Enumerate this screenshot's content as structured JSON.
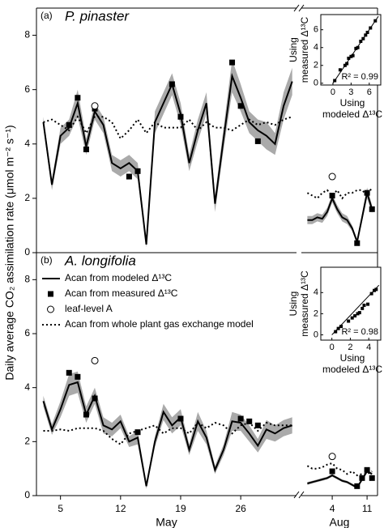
{
  "chart_data": [
    {
      "type": "line",
      "label": "(a)",
      "title": "P. pinaster",
      "ylabel": "Daily average CO₂ assimilation rate (μmol m⁻² s⁻¹)",
      "ylim": [
        0,
        9
      ],
      "yticks": [
        0,
        2,
        4,
        6,
        8
      ],
      "segments": [
        {
          "xlim": [
            2.2,
            32.5
          ],
          "x": [
            3,
            4,
            5,
            6,
            7,
            8,
            9,
            10,
            11,
            12,
            13,
            14,
            15,
            16,
            17,
            18,
            19,
            20,
            21,
            22,
            23,
            24,
            25,
            26,
            27,
            28,
            29,
            30,
            31,
            32
          ],
          "series": [
            {
              "style": "solid",
              "color": "#000000",
              "band_color": "#aaaaaa",
              "values": [
                4.8,
                2.5,
                4.3,
                4.6,
                5.5,
                3.9,
                5.2,
                4.7,
                3.3,
                3.1,
                3.3,
                3.0,
                0.3,
                4.8,
                5.5,
                6.2,
                5.1,
                3.3,
                4.5,
                5.5,
                1.8,
                4.2,
                6.5,
                5.7,
                4.8,
                4.5,
                4.3,
                4.0,
                5.4,
                6.3
              ],
              "lower": [
                4.6,
                2.3,
                4.0,
                4.3,
                5.0,
                3.6,
                4.9,
                4.4,
                3.0,
                2.8,
                3.0,
                2.7,
                0.2,
                4.4,
                5.1,
                5.8,
                4.7,
                3.0,
                4.1,
                5.1,
                1.5,
                3.8,
                5.9,
                5.2,
                4.4,
                4.1,
                3.8,
                3.6,
                4.9,
                5.8
              ],
              "upper": [
                5.0,
                2.7,
                4.6,
                4.9,
                6.0,
                4.2,
                5.5,
                5.0,
                3.6,
                3.4,
                3.6,
                3.3,
                0.4,
                5.2,
                5.9,
                6.6,
                5.5,
                3.6,
                4.9,
                5.9,
                2.1,
                4.6,
                7.1,
                6.2,
                5.2,
                4.9,
                4.8,
                4.4,
                5.9,
                6.8
              ]
            },
            {
              "style": "dotted",
              "color": "#000000",
              "values": [
                4.8,
                4.9,
                4.7,
                4.5,
                5.0,
                4.4,
                5.0,
                5.0,
                4.8,
                4.2,
                4.5,
                4.9,
                4.4,
                4.8,
                4.6,
                4.6,
                4.6,
                4.9,
                4.5,
                4.8,
                4.6,
                4.6,
                4.5,
                4.7,
                4.9,
                4.7,
                4.8,
                4.7,
                4.9,
                5.0
              ]
            },
            {
              "style": "square",
              "color": "#000000",
              "values": [
                null,
                null,
                null,
                4.7,
                5.7,
                3.8,
                5.3,
                null,
                null,
                null,
                2.8,
                3.0,
                null,
                null,
                null,
                6.2,
                5.0,
                null,
                null,
                null,
                null,
                null,
                7.0,
                5.4,
                null,
                4.1,
                null,
                null,
                null,
                null
              ]
            },
            {
              "style": "circle",
              "color": "#000000",
              "values": [
                null,
                null,
                null,
                null,
                null,
                null,
                5.4,
                null,
                null,
                null,
                null,
                null,
                null,
                null,
                null,
                null,
                null,
                null,
                null,
                null,
                null,
                null,
                null,
                null,
                null,
                null,
                null,
                null,
                null,
                null
              ]
            }
          ]
        },
        {
          "xlim": [
            -2.2,
            13.1
          ],
          "x": [
            -1,
            0,
            1,
            2,
            3,
            4,
            5,
            6,
            7,
            8,
            9,
            10,
            11,
            12
          ],
          "series": [
            {
              "style": "solid",
              "color": "#000000",
              "band_color": "#aaaaaa",
              "values": [
                1.2,
                1.2,
                1.3,
                1.25,
                1.5,
                2.0,
                1.6,
                1.3,
                1.2,
                0.9,
                0.4,
                1.3,
                2.2,
                1.6
              ],
              "lower": [
                1.05,
                1.05,
                1.15,
                1.1,
                1.35,
                1.85,
                1.45,
                1.15,
                1.05,
                0.8,
                0.3,
                1.15,
                2.0,
                1.45
              ],
              "upper": [
                1.35,
                1.35,
                1.45,
                1.4,
                1.65,
                2.15,
                1.75,
                1.45,
                1.35,
                1.0,
                0.5,
                1.45,
                2.4,
                1.75
              ]
            },
            {
              "style": "dotted",
              "color": "#000000",
              "values": [
                2.2,
                2.1,
                2.0,
                2.2,
                2.3,
                2.1,
                2.3,
                2.0,
                2.2,
                2.2,
                2.3,
                2.3,
                2.1,
                2.4
              ]
            },
            {
              "style": "square",
              "color": "#000000",
              "values": [
                null,
                null,
                null,
                null,
                null,
                2.1,
                null,
                null,
                null,
                null,
                0.35,
                null,
                2.2,
                1.6
              ]
            },
            {
              "style": "circle",
              "color": "#000000",
              "values": [
                null,
                null,
                null,
                null,
                null,
                2.8,
                null,
                null,
                null,
                null,
                null,
                null,
                null,
                null
              ]
            }
          ]
        }
      ]
    },
    {
      "type": "scatter",
      "xlim": [
        -2,
        7.9
      ],
      "ylim": [
        -0.2,
        7.7
      ],
      "xticks": [
        0,
        3,
        6
      ],
      "yticks": [
        0,
        2,
        4,
        6
      ],
      "xlabel": [
        "Using",
        "modeled Δ¹³C"
      ],
      "ylabel": [
        "Using",
        "measured Δ¹³C"
      ],
      "annotation": "R² = 0.99",
      "color": "#000000",
      "x": [
        0.3,
        1.2,
        2.0,
        2.3,
        2.6,
        3.0,
        3.3,
        3.8,
        4.1,
        4.6,
        5.0,
        5.4,
        5.7,
        6.2,
        7.0
      ],
      "values": [
        0.3,
        1.5,
        2.0,
        2.2,
        2.8,
        3.0,
        3.1,
        3.9,
        4.0,
        4.7,
        5.0,
        5.4,
        5.7,
        6.2,
        7.0
      ],
      "fit": {
        "x": [
          0,
          7.5
        ],
        "values": [
          0,
          7.5
        ]
      }
    },
    {
      "type": "line",
      "label": "(b)",
      "title": "A. longifolia",
      "ylim": [
        0,
        9
      ],
      "yticks": [
        0,
        2,
        4,
        6,
        8
      ],
      "legend": [
        {
          "name": "Acan from modeled Δ¹³C",
          "style": "solid"
        },
        {
          "name": "Acan from measured Δ¹³C",
          "style": "square"
        },
        {
          "name": "leaf-level A",
          "style": "circle"
        },
        {
          "name": "Acan from whole plant gas exchange model",
          "style": "dotted"
        }
      ],
      "segments": [
        {
          "label": "May",
          "xlim": [
            2.2,
            32.5
          ],
          "xticks": [
            5,
            12,
            19,
            26
          ],
          "x": [
            3,
            4,
            5,
            6,
            7,
            8,
            9,
            10,
            11,
            12,
            13,
            14,
            15,
            16,
            17,
            18,
            19,
            20,
            21,
            22,
            23,
            24,
            25,
            26,
            27,
            28,
            29,
            30,
            31,
            32
          ],
          "series": [
            {
              "style": "solid",
              "color": "#000000",
              "band_color": "#aaaaaa",
              "values": [
                3.5,
                2.45,
                3.2,
                4.1,
                4.2,
                3.0,
                3.7,
                2.6,
                2.45,
                2.75,
                2.0,
                2.15,
                0.35,
                2.0,
                3.1,
                2.6,
                2.9,
                1.7,
                2.75,
                2.15,
                0.95,
                1.7,
                2.75,
                2.7,
                2.3,
                1.85,
                2.45,
                2.3,
                2.5,
                2.6
              ],
              "lower": [
                3.3,
                2.25,
                2.9,
                3.7,
                3.8,
                2.7,
                3.4,
                2.3,
                2.2,
                2.5,
                1.8,
                1.9,
                0.25,
                1.8,
                2.8,
                2.3,
                2.6,
                1.5,
                2.4,
                1.9,
                0.8,
                1.5,
                2.4,
                2.4,
                2.0,
                1.6,
                2.1,
                2.0,
                2.2,
                2.3
              ],
              "upper": [
                3.7,
                2.65,
                3.5,
                4.5,
                4.6,
                3.3,
                4.0,
                2.9,
                2.7,
                3.0,
                2.2,
                2.4,
                0.45,
                2.2,
                3.4,
                2.9,
                3.2,
                1.9,
                3.1,
                2.4,
                1.1,
                1.9,
                3.1,
                3.0,
                2.6,
                2.1,
                2.8,
                2.6,
                2.8,
                2.9
              ]
            },
            {
              "style": "dotted",
              "color": "#000000",
              "values": [
                2.4,
                2.4,
                2.45,
                2.4,
                2.5,
                2.5,
                2.5,
                2.4,
                2.1,
                1.9,
                2.3,
                2.4,
                2.5,
                2.6,
                2.3,
                2.5,
                2.5,
                2.3,
                2.7,
                2.5,
                2.7,
                2.6,
                2.3,
                2.6,
                2.7,
                2.4,
                2.7,
                2.6,
                2.6,
                2.6
              ]
            },
            {
              "style": "square",
              "color": "#000000",
              "values": [
                null,
                null,
                null,
                4.55,
                4.4,
                3.0,
                3.6,
                null,
                null,
                null,
                null,
                2.35,
                null,
                null,
                null,
                null,
                2.85,
                null,
                null,
                null,
                null,
                null,
                null,
                2.85,
                2.75,
                2.6,
                null,
                null,
                null,
                null
              ]
            },
            {
              "style": "circle",
              "color": "#000000",
              "values": [
                null,
                null,
                null,
                null,
                null,
                null,
                5.0,
                null,
                null,
                null,
                null,
                null,
                null,
                null,
                null,
                null,
                null,
                null,
                null,
                null,
                null,
                null,
                null,
                null,
                null,
                null,
                null,
                null,
                null,
                null
              ]
            }
          ]
        },
        {
          "label": "Aug",
          "xlim": [
            -2.2,
            13.1
          ],
          "xticks": [
            4,
            11
          ],
          "x": [
            -1,
            0,
            1,
            2,
            3,
            4,
            5,
            6,
            7,
            8,
            9,
            10,
            11,
            12
          ],
          "series": [
            {
              "style": "solid",
              "color": "#000000",
              "band_color": "#aaaaaa",
              "values": [
                0.45,
                0.5,
                0.55,
                0.6,
                0.65,
                0.75,
                0.65,
                0.55,
                0.5,
                0.4,
                0.3,
                0.6,
                0.9,
                0.8
              ],
              "lower": [
                0.4,
                0.45,
                0.5,
                0.55,
                0.6,
                0.7,
                0.6,
                0.5,
                0.45,
                0.35,
                0.25,
                0.55,
                0.85,
                0.75
              ],
              "upper": [
                0.5,
                0.55,
                0.6,
                0.65,
                0.7,
                0.8,
                0.7,
                0.6,
                0.55,
                0.45,
                0.35,
                0.65,
                0.95,
                0.85
              ]
            },
            {
              "style": "dotted",
              "color": "#000000",
              "values": [
                1.1,
                1.0,
                1.0,
                1.05,
                1.15,
                1.2,
                1.0,
                0.95,
                0.8,
                0.9,
                0.75,
                0.8,
                0.8,
                0.9
              ]
            },
            {
              "style": "square",
              "color": "#000000",
              "values": [
                null,
                null,
                null,
                null,
                null,
                0.9,
                null,
                null,
                null,
                null,
                0.35,
                0.65,
                0.95,
                0.65
              ]
            },
            {
              "style": "circle",
              "color": "#000000",
              "values": [
                null,
                null,
                null,
                null,
                null,
                1.45,
                null,
                null,
                null,
                null,
                null,
                null,
                null,
                null
              ]
            }
          ]
        }
      ]
    },
    {
      "type": "scatter",
      "xlim": [
        -1.2,
        5.3
      ],
      "ylim": [
        -0.5,
        6.4
      ],
      "xticks": [
        0,
        2,
        4
      ],
      "yticks": [
        0,
        2,
        4
      ],
      "xlabel": [
        "Using",
        "modeled Δ¹³C"
      ],
      "ylabel": [
        "Using",
        "measured Δ¹³C"
      ],
      "annotation": "R² = 0.98",
      "color": "#000000",
      "x": [
        0.4,
        0.7,
        1.0,
        1.8,
        2.2,
        2.5,
        2.8,
        3.0,
        3.3,
        3.5,
        3.9,
        4.3,
        4.6,
        4.8
      ],
      "values": [
        0.3,
        0.6,
        0.8,
        1.3,
        1.6,
        1.8,
        2.0,
        2.1,
        2.5,
        2.8,
        2.9,
        3.9,
        4.2,
        4.3
      ],
      "fit": {
        "x": [
          0,
          5.1
        ],
        "values": [
          0,
          4.7
        ]
      }
    }
  ]
}
